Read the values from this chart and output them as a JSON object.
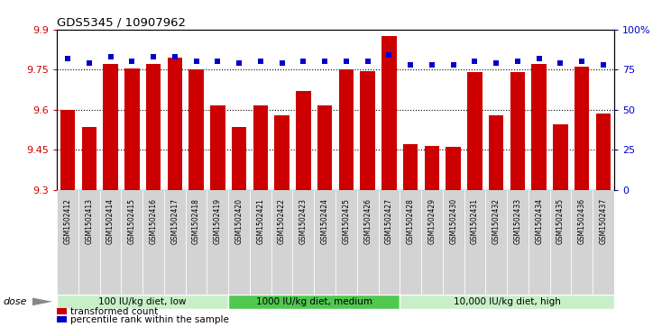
{
  "title": "GDS5345 / 10907962",
  "samples": [
    "GSM1502412",
    "GSM1502413",
    "GSM1502414",
    "GSM1502415",
    "GSM1502416",
    "GSM1502417",
    "GSM1502418",
    "GSM1502419",
    "GSM1502420",
    "GSM1502421",
    "GSM1502422",
    "GSM1502423",
    "GSM1502424",
    "GSM1502425",
    "GSM1502426",
    "GSM1502427",
    "GSM1502428",
    "GSM1502429",
    "GSM1502430",
    "GSM1502431",
    "GSM1502432",
    "GSM1502433",
    "GSM1502434",
    "GSM1502435",
    "GSM1502436",
    "GSM1502437"
  ],
  "bar_values": [
    9.6,
    9.535,
    9.77,
    9.755,
    9.77,
    9.795,
    9.75,
    9.615,
    9.535,
    9.615,
    9.58,
    9.67,
    9.615,
    9.75,
    9.745,
    9.875,
    9.47,
    9.465,
    9.46,
    9.74,
    9.58,
    9.74,
    9.77,
    9.545,
    9.76,
    9.585
  ],
  "percentile_values": [
    82,
    79,
    83,
    80,
    83,
    83,
    80,
    80,
    79,
    80,
    79,
    80,
    80,
    80,
    80,
    84,
    78,
    78,
    78,
    80,
    79,
    80,
    82,
    79,
    80,
    78
  ],
  "ylim_left": [
    9.3,
    9.9
  ],
  "ylim_right": [
    0,
    100
  ],
  "bar_color": "#cc0000",
  "dot_color": "#0000cc",
  "tick_label_bg": "#d0d0d0",
  "groups": [
    {
      "label": "100 IU/kg diet, low",
      "start": 0,
      "end": 8,
      "color": "#c8f0c8"
    },
    {
      "label": "1000 IU/kg diet, medium",
      "start": 8,
      "end": 16,
      "color": "#50c850"
    },
    {
      "label": "10,000 IU/kg diet, high",
      "start": 16,
      "end": 26,
      "color": "#c8f0c8"
    }
  ],
  "yticks_left": [
    9.3,
    9.45,
    9.6,
    9.75,
    9.9
  ],
  "yticks_right": [
    0,
    25,
    50,
    75,
    100
  ],
  "grid_yticks": [
    9.45,
    9.6,
    9.75
  ],
  "legend_items": [
    {
      "label": "transformed count",
      "color": "#cc0000"
    },
    {
      "label": "percentile rank within the sample",
      "color": "#0000cc"
    }
  ],
  "dose_label": "dose",
  "base": 9.3
}
